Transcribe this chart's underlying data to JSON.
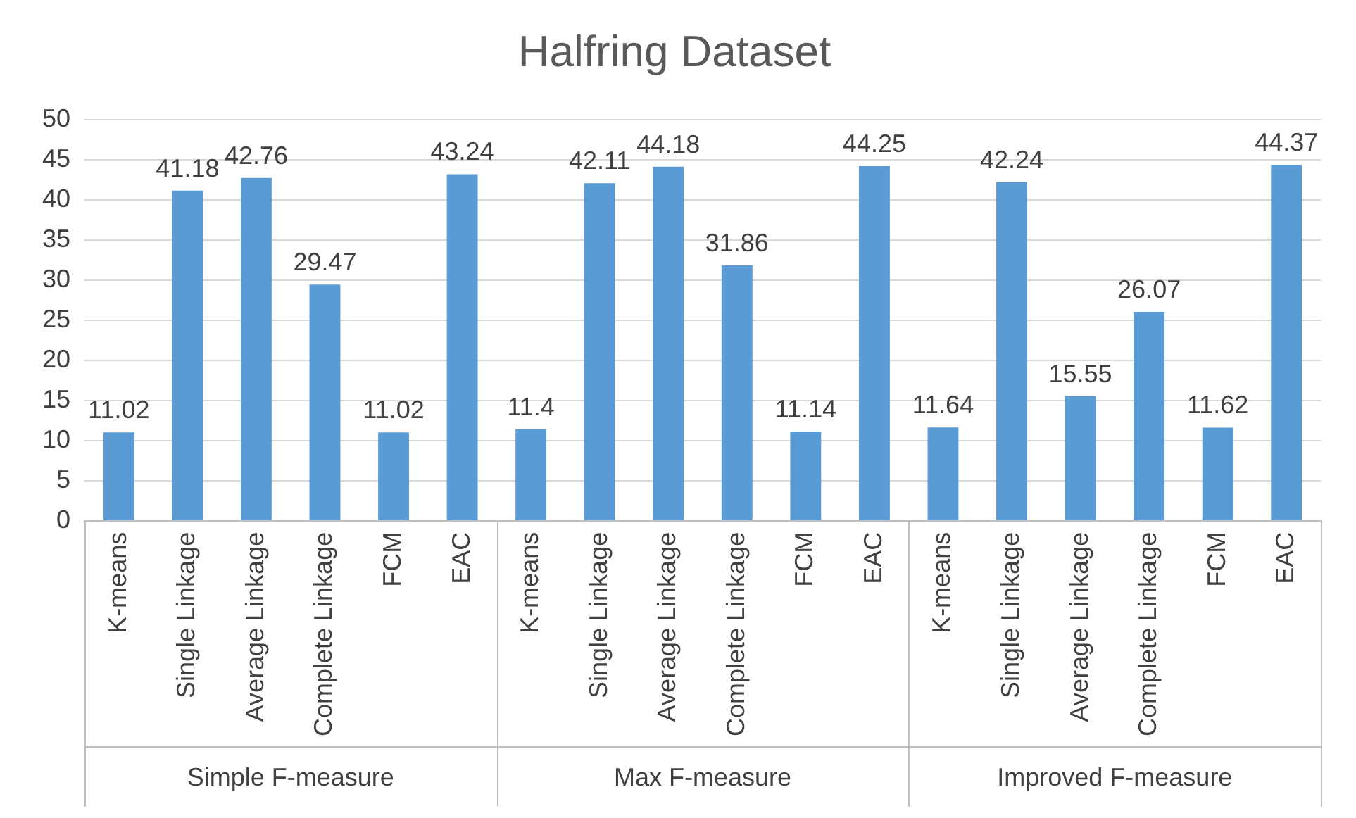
{
  "chart_data": {
    "type": "bar",
    "title": "Halfring Dataset",
    "categories": [
      "K-means",
      "Single Linkage",
      "Average Linkage",
      "Complete Linkage",
      "FCM",
      "EAC",
      "K-means",
      "Single Linkage",
      "Average Linkage",
      "Complete Linkage",
      "FCM",
      "EAC",
      "K-means",
      "Single Linkage",
      "Average Linkage",
      "Complete Linkage",
      "FCM",
      "EAC"
    ],
    "values": [
      11.02,
      41.18,
      42.76,
      29.47,
      11.02,
      43.24,
      11.4,
      42.11,
      44.18,
      31.86,
      11.14,
      44.25,
      11.64,
      42.24,
      15.55,
      26.07,
      11.62,
      44.37
    ],
    "color": "#5b9bd5",
    "ylim": [
      0,
      50
    ],
    "yticks": [
      0,
      5,
      10,
      15,
      20,
      25,
      30,
      35,
      40,
      45,
      50
    ],
    "grid": "y",
    "data_labels": true,
    "annotations": [
      "Simple F-measure",
      "Max F-measure",
      "Improved F-measure"
    ]
  }
}
